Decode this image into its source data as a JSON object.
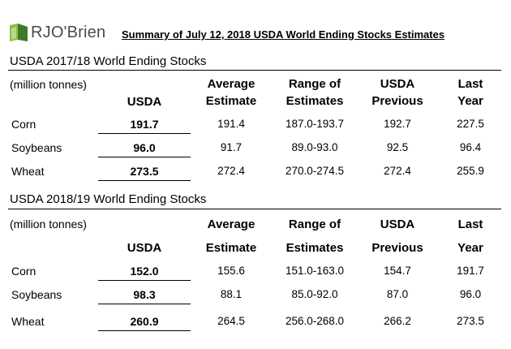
{
  "logo": {
    "text": "RJO'Brien"
  },
  "title": "Summary of July 12, 2018 USDA World Ending Stocks Estimates",
  "sections": [
    {
      "title": "USDA 2017/18 World Ending Stocks",
      "unit_label": "(million tonnes)",
      "headers": {
        "usda": "USDA",
        "average_1": "Average",
        "average_2": "Estimate",
        "range_1": "Range of",
        "range_2": "Estimates",
        "previous_1": "USDA",
        "previous_2": "Previous",
        "last_1": "Last",
        "last_2": "Year"
      },
      "rows": [
        {
          "name": "Corn",
          "usda": "191.7",
          "average": "191.4",
          "range": "187.0-193.7",
          "previous": "192.7",
          "last": "227.5"
        },
        {
          "name": "Soybeans",
          "usda": "96.0",
          "average": "91.7",
          "range": "89.0-93.0",
          "previous": "92.5",
          "last": "96.4"
        },
        {
          "name": "Wheat",
          "usda": "273.5",
          "average": "272.4",
          "range": "270.0-274.5",
          "previous": "272.4",
          "last": "255.9"
        }
      ]
    },
    {
      "title": "USDA 2018/19 World Ending Stocks",
      "unit_label": "(million tonnes)",
      "headers": {
        "usda": "USDA",
        "average_1": "Average",
        "average_2": "Estimate",
        "range_1": "Range of",
        "range_2": "Estimates",
        "previous_1": "USDA",
        "previous_2": "Previous",
        "last_1": "Last",
        "last_2": "Year"
      },
      "rows": [
        {
          "name": "Corn",
          "usda": "152.0",
          "average": "155.6",
          "range": "151.0-163.0",
          "previous": "154.7",
          "last": "191.7"
        },
        {
          "name": "Soybeans",
          "usda": "98.3",
          "average": "88.1",
          "range": "85.0-92.0",
          "previous": "87.0",
          "last": "96.0"
        },
        {
          "name": "Wheat",
          "usda": "260.9",
          "average": "264.5",
          "range": "256.0-268.0",
          "previous": "266.2",
          "last": "273.5"
        }
      ]
    }
  ]
}
